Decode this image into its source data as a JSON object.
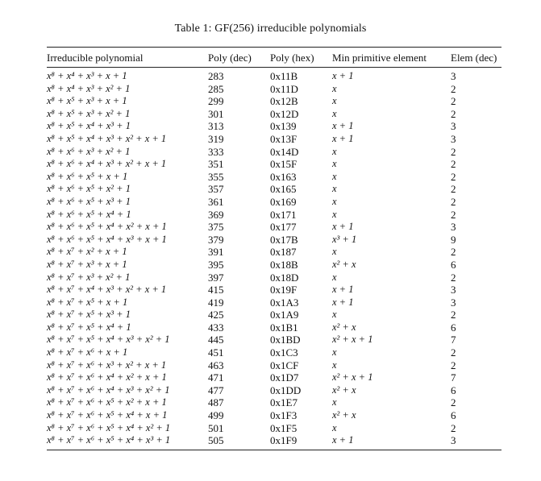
{
  "caption": "Table 1: GF(256) irreducible polynomials",
  "table": {
    "headers": [
      "Irreducible polynomial",
      "Poly (dec)",
      "Poly (hex)",
      "Min primitive element",
      "Elem (dec)"
    ],
    "rows": [
      [
        "x⁸ + x⁴ + x³ + x + 1",
        "283",
        "0x11B",
        "x + 1",
        "3"
      ],
      [
        "x⁸ + x⁴ + x³ + x² + 1",
        "285",
        "0x11D",
        "x",
        "2"
      ],
      [
        "x⁸ + x⁵ + x³ + x + 1",
        "299",
        "0x12B",
        "x",
        "2"
      ],
      [
        "x⁸ + x⁵ + x³ + x² + 1",
        "301",
        "0x12D",
        "x",
        "2"
      ],
      [
        "x⁸ + x⁵ + x⁴ + x³ + 1",
        "313",
        "0x139",
        "x + 1",
        "3"
      ],
      [
        "x⁸ + x⁵ + x⁴ + x³ + x² + x + 1",
        "319",
        "0x13F",
        "x + 1",
        "3"
      ],
      [
        "x⁸ + x⁶ + x³ + x² + 1",
        "333",
        "0x14D",
        "x",
        "2"
      ],
      [
        "x⁸ + x⁶ + x⁴ + x³ + x² + x + 1",
        "351",
        "0x15F",
        "x",
        "2"
      ],
      [
        "x⁸ + x⁶ + x⁵ + x + 1",
        "355",
        "0x163",
        "x",
        "2"
      ],
      [
        "x⁸ + x⁶ + x⁵ + x² + 1",
        "357",
        "0x165",
        "x",
        "2"
      ],
      [
        "x⁸ + x⁶ + x⁵ + x³ + 1",
        "361",
        "0x169",
        "x",
        "2"
      ],
      [
        "x⁸ + x⁶ + x⁵ + x⁴ + 1",
        "369",
        "0x171",
        "x",
        "2"
      ],
      [
        "x⁸ + x⁶ + x⁵ + x⁴ + x² + x + 1",
        "375",
        "0x177",
        "x + 1",
        "3"
      ],
      [
        "x⁸ + x⁶ + x⁵ + x⁴ + x³ + x + 1",
        "379",
        "0x17B",
        "x³ + 1",
        "9"
      ],
      [
        "x⁸ + x⁷ + x² + x + 1",
        "391",
        "0x187",
        "x",
        "2"
      ],
      [
        "x⁸ + x⁷ + x³ + x + 1",
        "395",
        "0x18B",
        "x² + x",
        "6"
      ],
      [
        "x⁸ + x⁷ + x³ + x² + 1",
        "397",
        "0x18D",
        "x",
        "2"
      ],
      [
        "x⁸ + x⁷ + x⁴ + x³ + x² + x + 1",
        "415",
        "0x19F",
        "x + 1",
        "3"
      ],
      [
        "x⁸ + x⁷ + x⁵ + x + 1",
        "419",
        "0x1A3",
        "x + 1",
        "3"
      ],
      [
        "x⁸ + x⁷ + x⁵ + x³ + 1",
        "425",
        "0x1A9",
        "x",
        "2"
      ],
      [
        "x⁸ + x⁷ + x⁵ + x⁴ + 1",
        "433",
        "0x1B1",
        "x² + x",
        "6"
      ],
      [
        "x⁸ + x⁷ + x⁵ + x⁴ + x³ + x² + 1",
        "445",
        "0x1BD",
        "x² + x + 1",
        "7"
      ],
      [
        "x⁸ + x⁷ + x⁶ + x + 1",
        "451",
        "0x1C3",
        "x",
        "2"
      ],
      [
        "x⁸ + x⁷ + x⁶ + x³ + x² + x + 1",
        "463",
        "0x1CF",
        "x",
        "2"
      ],
      [
        "x⁸ + x⁷ + x⁶ + x⁴ + x² + x + 1",
        "471",
        "0x1D7",
        "x² + x + 1",
        "7"
      ],
      [
        "x⁸ + x⁷ + x⁶ + x⁴ + x³ + x² + 1",
        "477",
        "0x1DD",
        "x² + x",
        "6"
      ],
      [
        "x⁸ + x⁷ + x⁶ + x⁵ + x² + x + 1",
        "487",
        "0x1E7",
        "x",
        "2"
      ],
      [
        "x⁸ + x⁷ + x⁶ + x⁵ + x⁴ + x + 1",
        "499",
        "0x1F3",
        "x² + x",
        "6"
      ],
      [
        "x⁸ + x⁷ + x⁶ + x⁵ + x⁴ + x² + 1",
        "501",
        "0x1F5",
        "x",
        "2"
      ],
      [
        "x⁸ + x⁷ + x⁶ + x⁵ + x⁴ + x³ + 1",
        "505",
        "0x1F9",
        "x + 1",
        "3"
      ]
    ]
  }
}
